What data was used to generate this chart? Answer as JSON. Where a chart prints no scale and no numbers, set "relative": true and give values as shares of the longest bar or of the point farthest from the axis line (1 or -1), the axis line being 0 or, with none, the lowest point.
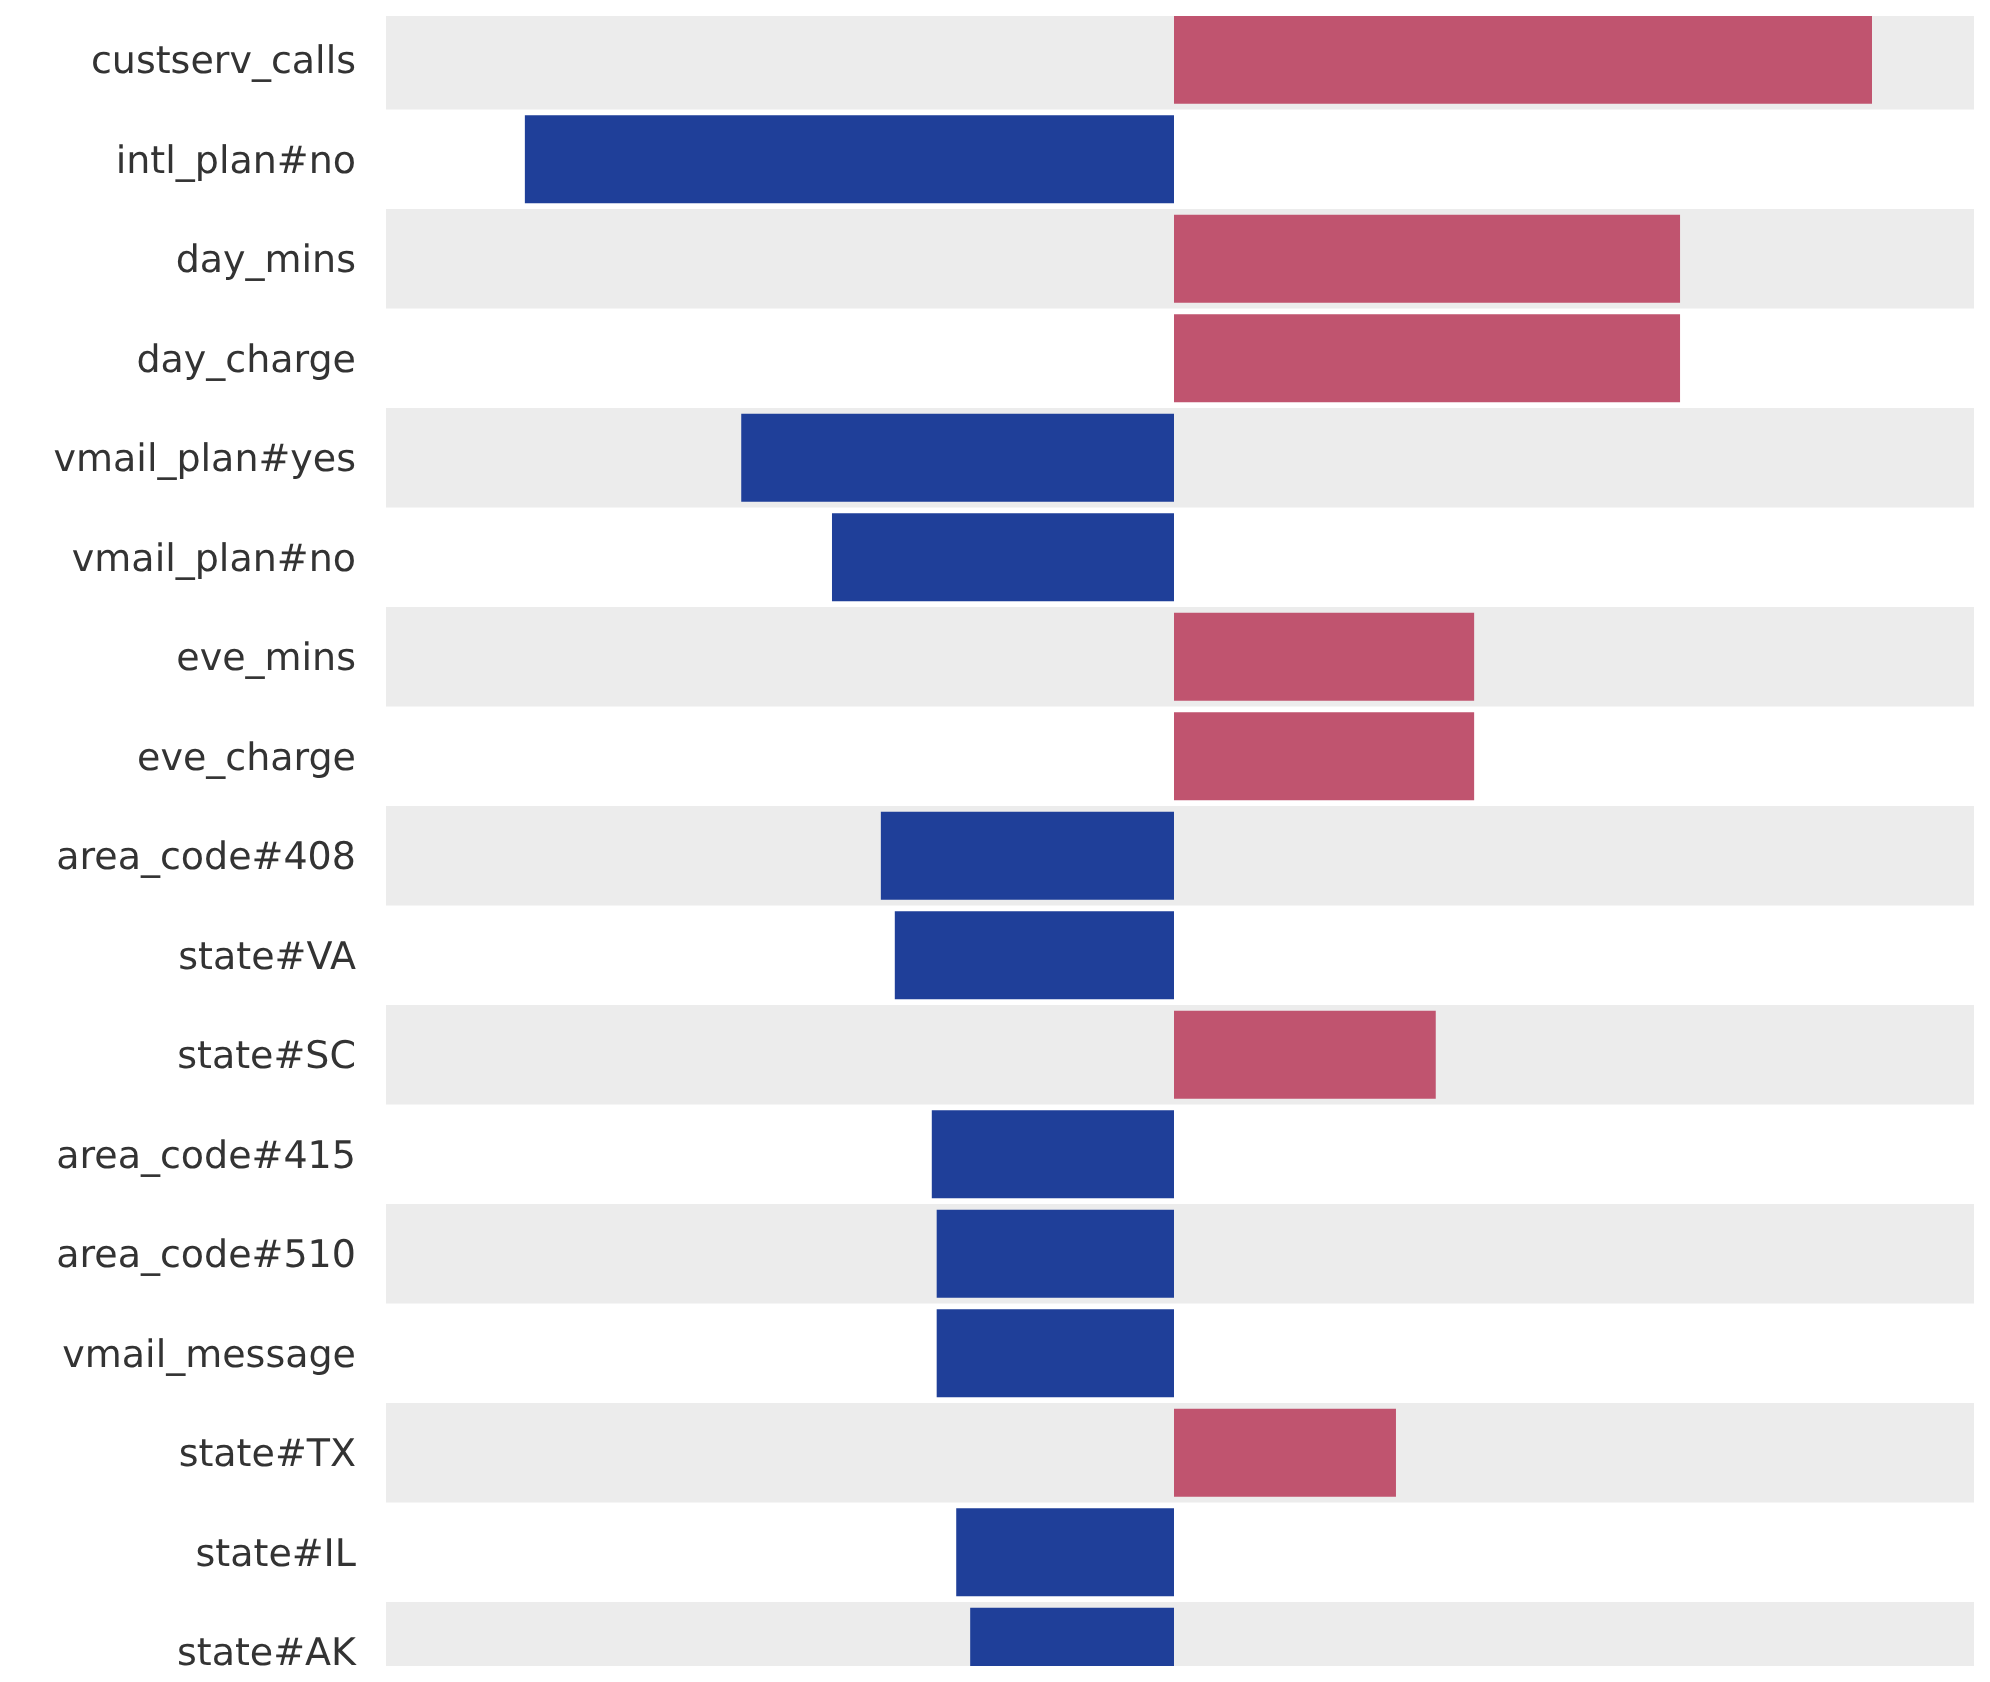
{
  "chart_data": {
    "type": "bar",
    "orientation": "horizontal",
    "relative": true,
    "categories": [
      "custserv_calls",
      "intl_plan#no",
      "day_mins",
      "day_charge",
      "vmail_plan#yes",
      "vmail_plan#no",
      "eve_mins",
      "eve_charge",
      "area_code#408",
      "state#VA",
      "state#SC",
      "area_code#415",
      "area_code#510",
      "vmail_message",
      "state#TX",
      "state#IL",
      "state#AK"
    ],
    "values": [
      1,
      -0.93,
      0.725,
      0.725,
      -0.62,
      -0.49,
      0.43,
      0.43,
      -0.42,
      -0.4,
      0.375,
      -0.347,
      -0.34,
      -0.34,
      0.318,
      -0.312,
      -0.292
    ],
    "colors": [
      "#c0546f",
      "#1f3f99",
      "#c0546f",
      "#c0546f",
      "#1f3f99",
      "#1f3f99",
      "#c0546f",
      "#c0546f",
      "#1f3f99",
      "#1f3f99",
      "#c0546f",
      "#1f3f99",
      "#1f3f99",
      "#1f3f99",
      "#c0546f",
      "#1f3f99",
      "#1f3f99"
    ]
  }
}
